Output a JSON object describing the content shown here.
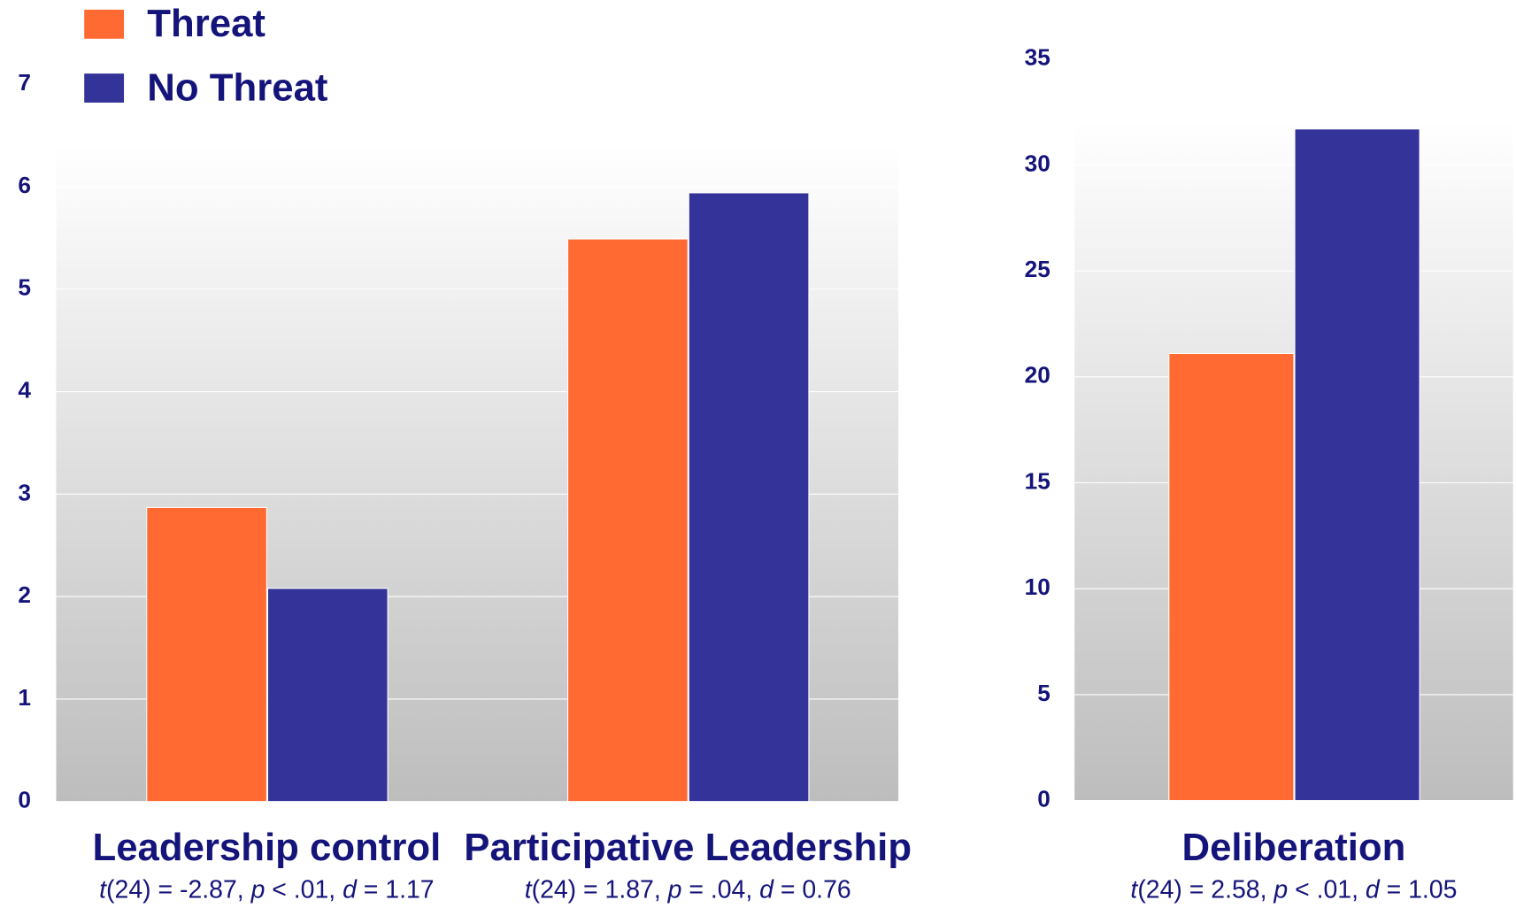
{
  "chart_data": [
    {
      "type": "bar",
      "legend": "upper left",
      "categories": [
        "Leadership control",
        "Participative Leadership"
      ],
      "annotations": [
        [
          [
            "t",
            "(24) = -2.87, "
          ],
          [
            "p",
            " < .01, "
          ],
          [
            "d",
            " = 1.17"
          ]
        ],
        [
          [
            "t",
            "(24) = 1.87, "
          ],
          [
            "p",
            " = .04, "
          ],
          [
            "d",
            " = 0.76"
          ]
        ]
      ],
      "series": [
        {
          "name": "Threat",
          "color": "#ff6a33",
          "values": [
            2.87,
            5.49
          ]
        },
        {
          "name": "No Threat",
          "color": "#333399",
          "values": [
            2.08,
            5.94
          ]
        }
      ],
      "ylim": [
        0,
        7
      ],
      "yticks": [
        0,
        1,
        2,
        3,
        4,
        5,
        6,
        7
      ],
      "grid": true
    },
    {
      "type": "bar",
      "categories": [
        "Deliberation"
      ],
      "annotations": [
        [
          [
            "t",
            "(24) = 2.58, "
          ],
          [
            "p",
            " < .01, "
          ],
          [
            "d",
            " = 1.05"
          ]
        ]
      ],
      "series": [
        {
          "color": "#ff6a33",
          "values": [
            21.1
          ]
        },
        {
          "color": "#333399",
          "values": [
            31.7
          ]
        }
      ],
      "ylim": [
        0,
        35
      ],
      "yticks": [
        0,
        5,
        10,
        15,
        20,
        25,
        30,
        35
      ],
      "grid": true
    }
  ]
}
